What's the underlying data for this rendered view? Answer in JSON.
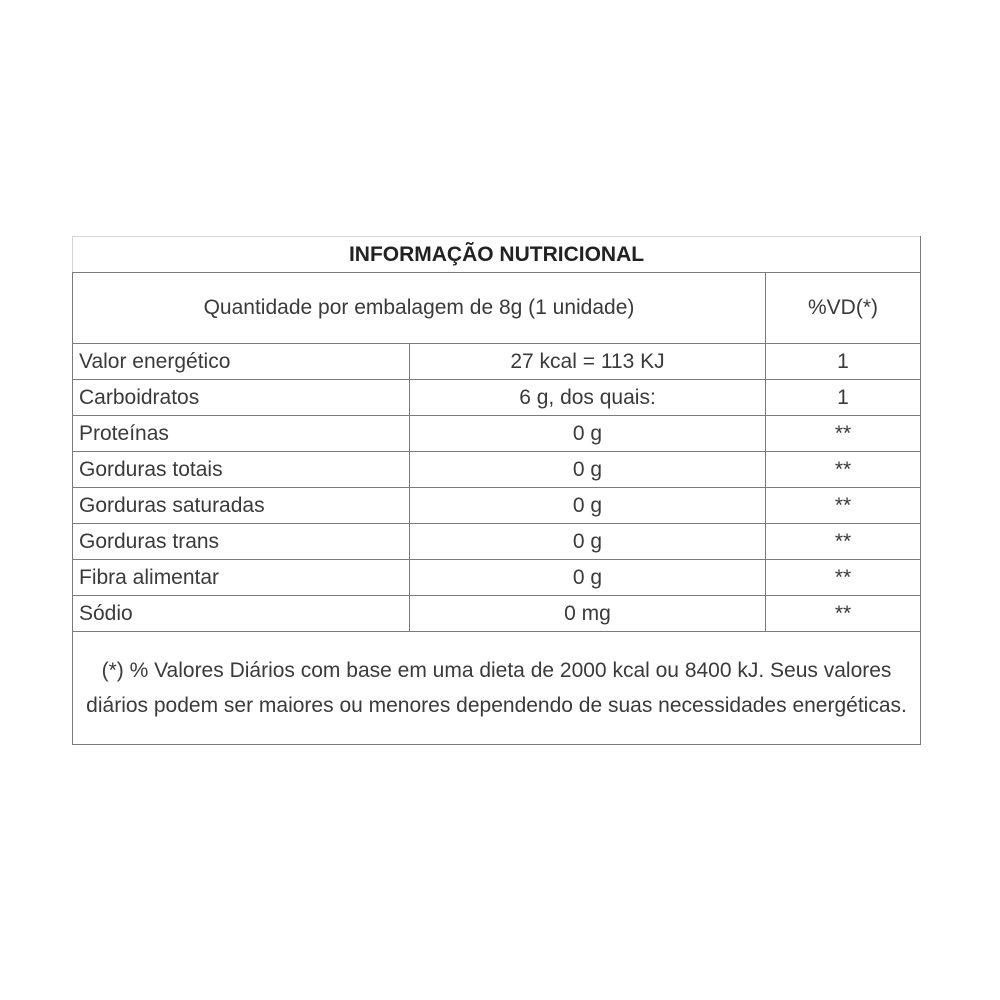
{
  "title": "INFORMAÇÃO NUTRICIONAL",
  "header": {
    "portion": "Quantidade por embalagem de 8g (1 unidade)",
    "vd": "%VD(*)"
  },
  "rows": [
    {
      "name": "Valor energético",
      "amount": "27 kcal = 113 KJ",
      "vd": "1"
    },
    {
      "name": "Carboidratos",
      "amount": "6 g, dos quais:",
      "vd": "1"
    },
    {
      "name": "Proteínas",
      "amount": "0 g",
      "vd": "**"
    },
    {
      "name": "Gorduras totais",
      "amount": "0 g",
      "vd": "**"
    },
    {
      "name": "Gorduras saturadas",
      "amount": "0 g",
      "vd": "**"
    },
    {
      "name": "Gorduras trans",
      "amount": "0 g",
      "vd": "**"
    },
    {
      "name": "Fibra alimentar",
      "amount": "0 g",
      "vd": "**"
    },
    {
      "name": "Sódio",
      "amount": "0 mg",
      "vd": "**"
    }
  ],
  "footnote": "(*) % Valores Diários com base em uma dieta de 2000 kcal ou 8400 kJ. Seus valores diários podem ser maiores ou menores dependendo de suas necessidades energéticas."
}
